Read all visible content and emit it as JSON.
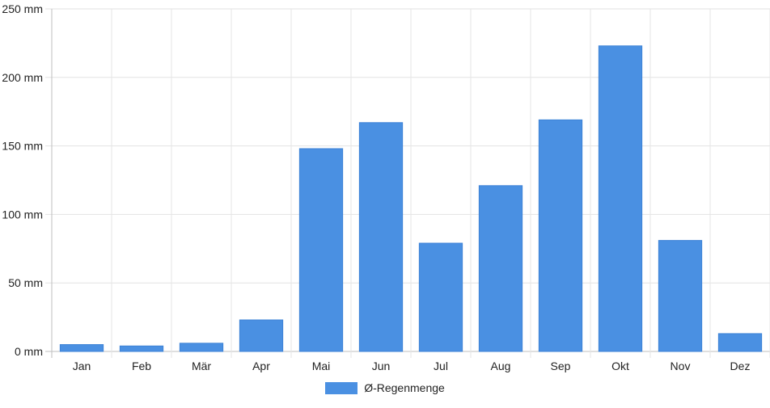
{
  "chart_data": {
    "type": "bar",
    "categories": [
      "Jan",
      "Feb",
      "Mär",
      "Apr",
      "Mai",
      "Jun",
      "Jul",
      "Aug",
      "Sep",
      "Okt",
      "Nov",
      "Dez"
    ],
    "series": [
      {
        "name": "Ø-Regenmenge",
        "values": [
          5,
          4,
          6,
          23,
          148,
          167,
          79,
          121,
          169,
          223,
          81,
          13
        ],
        "color": "#4a90e2"
      }
    ],
    "y_ticks": [
      "0 mm",
      "50 mm",
      "100 mm",
      "150 mm",
      "200 mm",
      "250 mm"
    ],
    "ylim": [
      0,
      250
    ],
    "y_unit": "mm",
    "grid": true,
    "legend_position": "bottom"
  }
}
